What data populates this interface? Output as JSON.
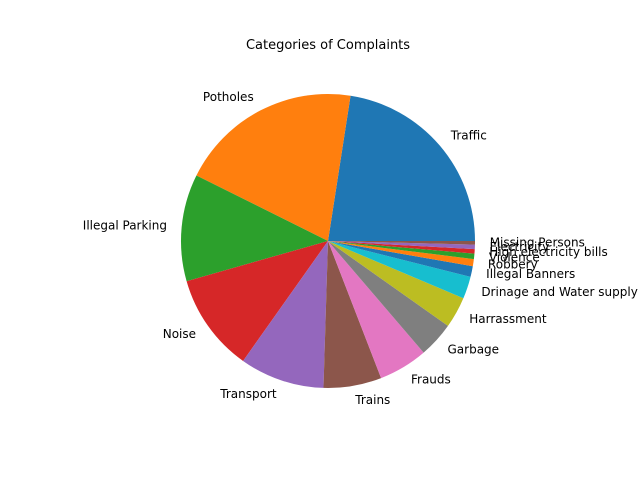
{
  "chart_data": {
    "type": "pie",
    "title": "Categories of Complaints",
    "start_angle_deg": 0,
    "direction": "counterclockwise",
    "slices": [
      {
        "label": "Traffic",
        "value": 23.0,
        "color": "#1f77b4"
      },
      {
        "label": "Potholes",
        "value": 20.5,
        "color": "#ff7f0e"
      },
      {
        "label": "Illegal Parking",
        "value": 12.0,
        "color": "#2ca02c"
      },
      {
        "label": "Noise",
        "value": 11.0,
        "color": "#d62728"
      },
      {
        "label": "Transport",
        "value": 9.5,
        "color": "#9467bd"
      },
      {
        "label": "Trains",
        "value": 6.5,
        "color": "#8c564b"
      },
      {
        "label": "Frauds",
        "value": 5.5,
        "color": "#e377c2"
      },
      {
        "label": "Garbage",
        "value": 4.0,
        "color": "#7f7f7f"
      },
      {
        "label": "Harrassment",
        "value": 3.5,
        "color": "#bcbd22"
      },
      {
        "label": "Drinage and Water supply",
        "value": 2.5,
        "color": "#17becf"
      },
      {
        "label": "Illegal Banners",
        "value": 1.2,
        "color": "#1f77b4"
      },
      {
        "label": "Robbery",
        "value": 0.8,
        "color": "#ff7f0e"
      },
      {
        "label": "Violence",
        "value": 0.6,
        "color": "#2ca02c"
      },
      {
        "label": "High electricity bills",
        "value": 0.5,
        "color": "#d62728"
      },
      {
        "label": "Electricity",
        "value": 0.5,
        "color": "#9467bd"
      },
      {
        "label": "Missing Persons",
        "value": 0.4,
        "color": "#8c564b"
      }
    ]
  }
}
